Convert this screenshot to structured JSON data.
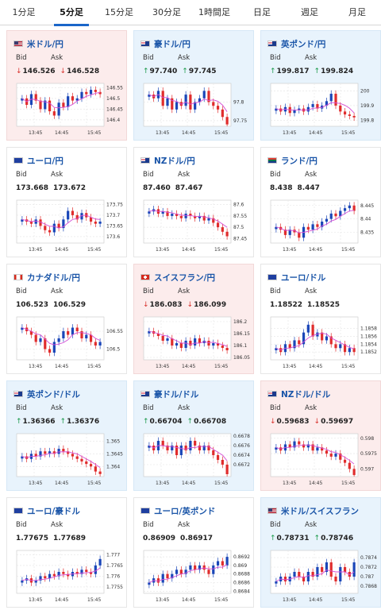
{
  "tabs": [
    {
      "label": "1分足"
    },
    {
      "label": "5分足",
      "active": true
    },
    {
      "label": "15分足"
    },
    {
      "label": "30分足"
    },
    {
      "label": "1時間足"
    },
    {
      "label": "日足"
    },
    {
      "label": "週足"
    },
    {
      "label": "月足"
    }
  ],
  "labels": {
    "bid": "Bid",
    "ask": "Ask"
  },
  "colors": {
    "up_candle": "#1a46b8",
    "down_candle": "#e02c2c",
    "ma_line": "#d64fd6",
    "tab_accent": "#1a66c9",
    "up_arrow": "#1a9a4a",
    "down_arrow": "#d8312b"
  },
  "pairs": [
    {
      "title": "米ドル/円",
      "flag": "us",
      "bg": "down",
      "arrow": "down",
      "bid": "146.526",
      "ask": "146.528",
      "chart": {
        "type": "candlestick",
        "y_ticks": [
          "146.55",
          "146.5",
          "146.45",
          "146.4"
        ],
        "ymin": 146.37,
        "ymax": 146.57,
        "x_ticks": [
          "13:45",
          "14:45",
          "15:45"
        ],
        "close": [
          146.5,
          146.47,
          146.52,
          146.49,
          146.45,
          146.49,
          146.44,
          146.42,
          146.48,
          146.46,
          146.51,
          146.49,
          146.5,
          146.53,
          146.52,
          146.54,
          146.53,
          146.52
        ]
      }
    },
    {
      "title": "豪ドル/円",
      "flag": "au",
      "bg": "up",
      "arrow": "up",
      "bid": "97.740",
      "ask": "97.745",
      "chart": {
        "type": "candlestick",
        "y_ticks": [
          "97.8",
          "97.75"
        ],
        "ymin": 97.735,
        "ymax": 97.85,
        "x_ticks": [
          "13:45",
          "14:45",
          "15:45"
        ],
        "close": [
          97.82,
          97.81,
          97.83,
          97.79,
          97.81,
          97.78,
          97.8,
          97.79,
          97.82,
          97.78,
          97.8,
          97.81,
          97.83,
          97.8,
          97.79,
          97.78,
          97.76,
          97.74
        ]
      }
    },
    {
      "title": "英ポンド/円",
      "flag": "gb",
      "bg": "up",
      "arrow": "up",
      "bid": "199.817",
      "ask": "199.824",
      "chart": {
        "type": "candlestick",
        "y_ticks": [
          "200",
          "199.9",
          "199.8"
        ],
        "ymin": 199.76,
        "ymax": 200.05,
        "x_ticks": [
          "13:45",
          "14:45",
          "15:45"
        ],
        "close": [
          199.88,
          199.86,
          199.89,
          199.85,
          199.87,
          199.88,
          199.86,
          199.89,
          199.91,
          199.88,
          199.9,
          199.93,
          199.98,
          199.9,
          199.86,
          199.84,
          199.83,
          199.82
        ]
      }
    },
    {
      "title": "ユーロ/円",
      "flag": "eu",
      "bg": "flat",
      "arrow": "",
      "bid": "173.668",
      "ask": "173.672",
      "chart": {
        "type": "candlestick",
        "y_ticks": [
          "173.75",
          "173.7",
          "173.65",
          "173.6"
        ],
        "ymin": 173.57,
        "ymax": 173.77,
        "x_ticks": [
          "13:45",
          "14:45",
          "15:45"
        ],
        "close": [
          173.68,
          173.67,
          173.66,
          173.68,
          173.65,
          173.63,
          173.62,
          173.66,
          173.64,
          173.68,
          173.72,
          173.7,
          173.68,
          173.71,
          173.69,
          173.67,
          173.66,
          173.67
        ]
      }
    },
    {
      "title": "NZドル/円",
      "flag": "nz",
      "bg": "flat",
      "arrow": "",
      "bid": "87.460",
      "ask": "87.467",
      "chart": {
        "type": "candlestick",
        "y_ticks": [
          "87.6",
          "87.55",
          "87.5",
          "87.45"
        ],
        "ymin": 87.43,
        "ymax": 87.62,
        "x_ticks": [
          "13:45",
          "14:45",
          "15:45"
        ],
        "close": [
          87.57,
          87.58,
          87.56,
          87.57,
          87.55,
          87.56,
          87.55,
          87.54,
          87.56,
          87.55,
          87.54,
          87.55,
          87.53,
          87.54,
          87.52,
          87.5,
          87.48,
          87.46
        ]
      }
    },
    {
      "title": "ランド/円",
      "flag": "za",
      "bg": "flat",
      "arrow": "",
      "bid": "8.438",
      "ask": "8.447",
      "chart": {
        "type": "candlestick",
        "y_ticks": [
          "8.445",
          "8.44",
          "8.435"
        ],
        "ymin": 8.431,
        "ymax": 8.447,
        "x_ticks": [
          "13:45",
          "14:45",
          "15:45"
        ],
        "close": [
          8.437,
          8.436,
          8.434,
          8.436,
          8.435,
          8.433,
          8.437,
          8.436,
          8.438,
          8.437,
          8.439,
          8.44,
          8.442,
          8.441,
          8.443,
          8.444,
          8.445,
          8.443
        ]
      }
    },
    {
      "title": "カナダドル/円",
      "flag": "ca",
      "bg": "flat",
      "arrow": "",
      "bid": "106.523",
      "ask": "106.529",
      "chart": {
        "type": "candlestick",
        "y_ticks": [
          "106.55",
          "106.5"
        ],
        "ymin": 106.47,
        "ymax": 106.59,
        "x_ticks": [
          "13:45",
          "14:45",
          "15:45"
        ],
        "close": [
          106.56,
          106.55,
          106.54,
          106.52,
          106.53,
          106.5,
          106.49,
          106.52,
          106.53,
          106.55,
          106.54,
          106.56,
          106.55,
          106.53,
          106.54,
          106.52,
          106.51,
          106.52
        ]
      }
    },
    {
      "title": "スイスフラン/円",
      "flag": "ch",
      "bg": "down",
      "arrow": "down",
      "bid": "186.083",
      "ask": "186.099",
      "chart": {
        "type": "candlestick",
        "y_ticks": [
          "186.2",
          "186.15",
          "186.1",
          "186.05"
        ],
        "ymin": 186.04,
        "ymax": 186.22,
        "x_ticks": [
          "13:45",
          "14:45",
          "15:45"
        ],
        "close": [
          186.16,
          186.15,
          186.14,
          186.12,
          186.13,
          186.1,
          186.11,
          186.09,
          186.12,
          186.1,
          186.13,
          186.11,
          186.12,
          186.1,
          186.11,
          186.1,
          186.09,
          186.08
        ]
      }
    },
    {
      "title": "ユーロ/ドル",
      "flag": "eu-us",
      "bg": "flat",
      "arrow": "",
      "bid": "1.18522",
      "ask": "1.18525",
      "chart": {
        "type": "candlestick",
        "y_ticks": [
          "1.1858",
          "1.1856",
          "1.1854",
          "1.1852"
        ],
        "ymin": 1.185,
        "ymax": 1.1861,
        "x_ticks": [
          "13:45",
          "14:45",
          "15:45"
        ],
        "close": [
          1.1853,
          1.1852,
          1.1854,
          1.1853,
          1.1855,
          1.1854,
          1.1857,
          1.1859,
          1.1856,
          1.1857,
          1.1855,
          1.1856,
          1.1854,
          1.1853,
          1.1854,
          1.1852,
          1.1853,
          1.1852
        ]
      }
    },
    {
      "title": "英ポンド/ドル",
      "flag": "gb-us",
      "bg": "up",
      "arrow": "up",
      "bid": "1.36366",
      "ask": "1.36376",
      "chart": {
        "type": "candlestick",
        "y_ticks": [
          "1.365",
          "1.3645",
          "1.364"
        ],
        "ymin": 1.3636,
        "ymax": 1.3653,
        "x_ticks": [
          "13:45",
          "14:45",
          "15:45"
        ],
        "close": [
          1.3644,
          1.3643,
          1.3645,
          1.3644,
          1.3646,
          1.3645,
          1.3646,
          1.3645,
          1.3647,
          1.3646,
          1.3645,
          1.3644,
          1.3643,
          1.3642,
          1.3641,
          1.364,
          1.3638,
          1.3637
        ]
      }
    },
    {
      "title": "豪ドル/ドル",
      "flag": "au-us",
      "bg": "up",
      "arrow": "up",
      "bid": "0.66704",
      "ask": "0.66708",
      "chart": {
        "type": "candlestick",
        "y_ticks": [
          "0.6678",
          "0.6676",
          "0.6674",
          "0.6672"
        ],
        "ymin": 0.66695,
        "ymax": 0.66785,
        "x_ticks": [
          "13:45",
          "14:45",
          "15:45"
        ],
        "close": [
          0.6676,
          0.6675,
          0.6677,
          0.6676,
          0.6675,
          0.6676,
          0.6674,
          0.6676,
          0.6675,
          0.6677,
          0.6676,
          0.6675,
          0.6676,
          0.6675,
          0.6674,
          0.6673,
          0.6672,
          0.667
        ]
      }
    },
    {
      "title": "NZドル/ドル",
      "flag": "nz-us",
      "bg": "down",
      "arrow": "down",
      "bid": "0.59683",
      "ask": "0.59697",
      "chart": {
        "type": "candlestick",
        "y_ticks": [
          "0.598",
          "0.5975",
          "0.597"
        ],
        "ymin": 0.59675,
        "ymax": 0.59815,
        "x_ticks": [
          "13:45",
          "14:45",
          "15:45"
        ],
        "close": [
          0.5977,
          0.5976,
          0.5978,
          0.5977,
          0.5979,
          0.5978,
          0.5977,
          0.5978,
          0.5976,
          0.5977,
          0.5976,
          0.5975,
          0.5974,
          0.5975,
          0.5973,
          0.5972,
          0.597,
          0.5968
        ]
      }
    },
    {
      "title": "ユーロ/豪ドル",
      "flag": "eu-au",
      "bg": "flat",
      "arrow": "",
      "bid": "1.77675",
      "ask": "1.77689",
      "chart": {
        "type": "candlestick",
        "y_ticks": [
          "1.777",
          "1.7765",
          "1.776",
          "1.7755"
        ],
        "ymin": 1.7752,
        "ymax": 1.7772,
        "x_ticks": [
          "13:45",
          "14:45",
          "15:45"
        ],
        "close": [
          1.7758,
          1.7759,
          1.7757,
          1.7758,
          1.776,
          1.7759,
          1.7761,
          1.776,
          1.7762,
          1.7761,
          1.776,
          1.7762,
          1.7761,
          1.7763,
          1.7762,
          1.7761,
          1.7765,
          1.7768
        ]
      }
    },
    {
      "title": "ユーロ/英ポンド",
      "flag": "eu-gb",
      "bg": "flat",
      "arrow": "",
      "bid": "0.86909",
      "ask": "0.86917",
      "chart": {
        "type": "candlestick",
        "y_ticks": [
          "0.8692",
          "0.869",
          "0.8688",
          "0.8686",
          "0.8684"
        ],
        "ymin": 0.86835,
        "ymax": 0.86935,
        "x_ticks": [
          "13:45",
          "14:45",
          "15:45"
        ],
        "close": [
          0.8686,
          0.8687,
          0.8686,
          0.8688,
          0.8687,
          0.8688,
          0.8689,
          0.8688,
          0.8689,
          0.869,
          0.8689,
          0.869,
          0.8689,
          0.8688,
          0.869,
          0.8691,
          0.869,
          0.8692
        ]
      }
    },
    {
      "title": "米ドル/スイスフラン",
      "flag": "us-ch",
      "bg": "up",
      "arrow": "up",
      "bid": "0.78731",
      "ask": "0.78746",
      "chart": {
        "type": "candlestick",
        "y_ticks": [
          "0.7874",
          "0.7872",
          "0.787",
          "0.7868"
        ],
        "ymin": 0.78665,
        "ymax": 0.78755,
        "x_ticks": [
          "13:45",
          "14:45",
          "15:45"
        ],
        "close": [
          0.7869,
          0.787,
          0.7869,
          0.787,
          0.7871,
          0.787,
          0.7869,
          0.7871,
          0.787,
          0.7872,
          0.7871,
          0.7873,
          0.787,
          0.7869,
          0.7872,
          0.7871,
          0.787,
          0.7873
        ]
      }
    }
  ]
}
